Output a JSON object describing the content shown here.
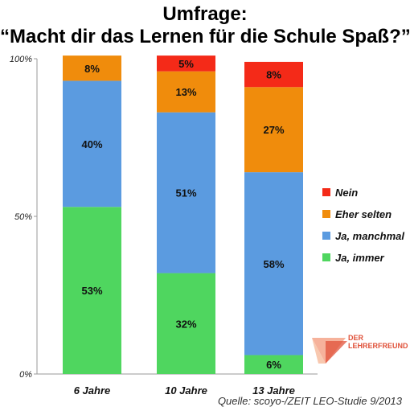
{
  "chart_data": {
    "type": "bar",
    "stacked": true,
    "title": "Umfrage:",
    "subtitle": "“Macht dir das Lernen für die Schule Spaß?”",
    "categories": [
      "6 Jahre",
      "10 Jahre",
      "13 Jahre"
    ],
    "ylim": [
      0,
      100
    ],
    "yticks": [
      {
        "value": 0,
        "label": "0%"
      },
      {
        "value": 50,
        "label": "50%"
      },
      {
        "value": 100,
        "label": "100%"
      }
    ],
    "grid": false,
    "legend_position": "right",
    "series": [
      {
        "name": "Ja, immer",
        "color": "#4fd65f",
        "values": [
          53,
          32,
          6
        ],
        "labels": [
          "53%",
          "32%",
          "6%"
        ]
      },
      {
        "name": "Ja, manchmal",
        "color": "#5b9be0",
        "values": [
          40,
          51,
          58
        ],
        "labels": [
          "40%",
          "51%",
          "58%"
        ]
      },
      {
        "name": "Eher selten",
        "color": "#f08c0c",
        "values": [
          8,
          13,
          27
        ],
        "labels": [
          "8%",
          "13%",
          "27%"
        ]
      },
      {
        "name": "Nein",
        "color": "#f42a18",
        "values": [
          0,
          5,
          8
        ],
        "labels": [
          "",
          "5%",
          "8%"
        ]
      }
    ],
    "legend_order": [
      "Nein",
      "Eher selten",
      "Ja, manchmal",
      "Ja, immer"
    ],
    "source": "Quelle: scoyo-/ZEIT LEO-Studie 9/2013"
  },
  "logo": {
    "line1": "DER",
    "line2": "LEHRERFREUND",
    "icon": "flag-triangle-icon"
  }
}
